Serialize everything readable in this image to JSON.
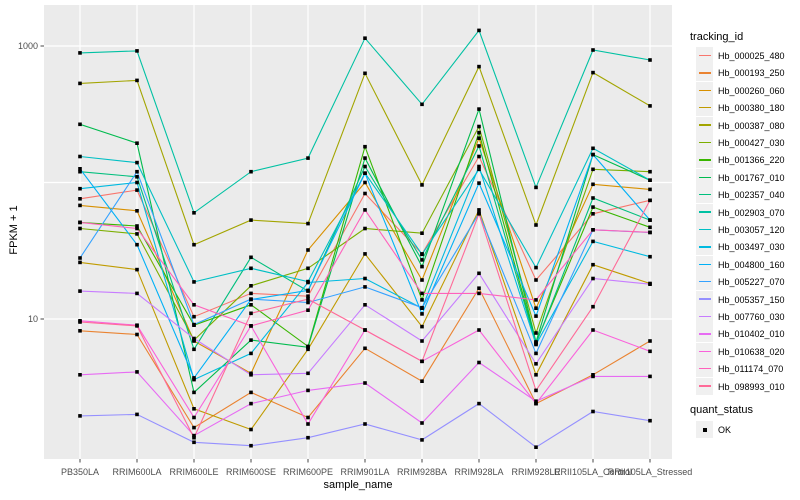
{
  "figure": {
    "background": "#FFFFFF",
    "panel_background": "#EBEBEB",
    "grid_color": "#FFFFFF",
    "point_color": "#000000",
    "tick_color": "#333333",
    "tick_label_color": "#4D4D4D"
  },
  "axes": {
    "x_title": "sample_name",
    "y_title": "FPKM + 1",
    "y_ticks": [
      {
        "label": "1000",
        "value": 1000
      },
      {
        "label": "10",
        "value": 10
      }
    ]
  },
  "legend": {
    "tracking_title": "tracking_id",
    "quant_title": "quant_status",
    "quant_items": [
      {
        "label": "OK",
        "marker": "black-square"
      }
    ]
  },
  "chart_data": {
    "type": "line",
    "title": "",
    "xlabel": "sample_name",
    "ylabel": "FPKM + 1",
    "y_scale": "log10",
    "ylim": [
      1,
      1700
    ],
    "grid": true,
    "legend_position": "right",
    "quant_status": "OK",
    "categories": [
      "PB350LA",
      "RRIM600LA",
      "RRIM600LE",
      "RRIM600SE",
      "RRIM600PE",
      "RRIM901LA",
      "RRIM928BA",
      "RRIM928LA",
      "RRIM928LE",
      "RRII105LA_Control",
      "RRII105LA_Stressed"
    ],
    "series": [
      {
        "name": "Hb_000025_480",
        "color": "#F8766D",
        "values": [
          76,
          88,
          10.4,
          15.4,
          14.7,
          83,
          30,
          155,
          19.3,
          59,
          74
        ]
      },
      {
        "name": "Hb_000193_250",
        "color": "#EA8331",
        "values": [
          8.2,
          7.7,
          1.6,
          2.9,
          1.9,
          6.1,
          3.5,
          16.8,
          2.4,
          3.9,
          6.9
        ]
      },
      {
        "name": "Hb_000260_060",
        "color": "#D89000",
        "values": [
          68,
          62,
          6.9,
          4.0,
          32,
          100,
          19.3,
          211,
          12.0,
          97,
          89
        ]
      },
      {
        "name": "Hb_000380_180",
        "color": "#C09B00",
        "values": [
          26,
          23,
          2.2,
          1.55,
          6.0,
          30,
          8.8,
          63,
          3.9,
          25,
          18.2
        ]
      },
      {
        "name": "Hb_000387_080",
        "color": "#A3A500",
        "values": [
          532,
          560,
          35,
          53,
          50,
          631,
          96,
          706,
          48.8,
          638,
          364
        ]
      },
      {
        "name": "Hb_000427_030",
        "color": "#7CAE00",
        "values": [
          46,
          42,
          7.0,
          17.5,
          23.5,
          46,
          42.5,
          257,
          7.9,
          125,
          120
        ]
      },
      {
        "name": "Hb_001366_220",
        "color": "#39B600",
        "values": [
          51,
          48,
          9.0,
          12.7,
          6.3,
          183,
          13.8,
          232,
          6.7,
          66,
          47
        ]
      },
      {
        "name": "Hb_001767_010",
        "color": "#00BB4E",
        "values": [
          267,
          194,
          2.9,
          7.0,
          6.2,
          151,
          24.2,
          345,
          6.8,
          160,
          104
        ]
      },
      {
        "name": "Hb_002357_040",
        "color": "#00BF7D",
        "values": [
          120,
          110,
          6.0,
          28.3,
          16.0,
          131,
          27.1,
          185,
          6.6,
          77,
          53
        ]
      },
      {
        "name": "Hb_002903_070",
        "color": "#00C1A3",
        "values": [
          890,
          920,
          60,
          120,
          151,
          1140,
          374,
          1300,
          92,
          935,
          790
        ]
      },
      {
        "name": "Hb_003057_120",
        "color": "#00BFC4",
        "values": [
          155,
          140,
          18.7,
          23.5,
          18.8,
          117,
          29.8,
          125,
          23.8,
          178,
          104
        ]
      },
      {
        "name": "Hb_003497_030",
        "color": "#00BAE0",
        "values": [
          90,
          100,
          3.6,
          5.6,
          18.5,
          19.8,
          12.0,
          131,
          6.5,
          37,
          28.6
        ]
      },
      {
        "name": "Hb_004800_160",
        "color": "#00B0F6",
        "values": [
          126,
          35,
          3.7,
          13.9,
          16.2,
          117,
          10.9,
          99,
          10.5,
          160,
          53
        ]
      },
      {
        "name": "Hb_005227_070",
        "color": "#35A2FF",
        "values": [
          28,
          120,
          9.1,
          14.0,
          13.2,
          17.2,
          12.1,
          59.5,
          5.6,
          45,
          43
        ]
      },
      {
        "name": "Hb_005357_150",
        "color": "#9590FF",
        "values": [
          1.95,
          2.0,
          1.25,
          1.18,
          1.35,
          1.7,
          1.3,
          2.4,
          1.15,
          2.1,
          1.8
        ]
      },
      {
        "name": "Hb_007760_030",
        "color": "#C77CFF",
        "values": [
          16,
          15.4,
          7.2,
          3.9,
          4.0,
          12.7,
          6.9,
          21.6,
          4.7,
          19.8,
          18.0
        ]
      },
      {
        "name": "Hb_010402_010",
        "color": "#E76BF3",
        "values": [
          3.9,
          4.1,
          1.4,
          2.4,
          3.0,
          3.4,
          1.73,
          4.8,
          2.5,
          3.8,
          3.8
        ]
      },
      {
        "name": "Hb_010638_020",
        "color": "#FA62DB",
        "values": [
          9.7,
          9.0,
          1.9,
          8.9,
          1.7,
          8.3,
          4.9,
          8.3,
          2.4,
          8.3,
          5.8
        ]
      },
      {
        "name": "Hb_011174_070",
        "color": "#FF62BC",
        "values": [
          51,
          46,
          12.7,
          8.9,
          11.6,
          63,
          15.4,
          15.4,
          13.8,
          45,
          43.2
        ]
      },
      {
        "name": "Hb_098993_010",
        "color": "#FF6A98",
        "values": [
          9.5,
          8.9,
          1.35,
          11.0,
          14.0,
          8.3,
          4.9,
          59,
          3.0,
          12.3,
          74
        ]
      }
    ]
  }
}
